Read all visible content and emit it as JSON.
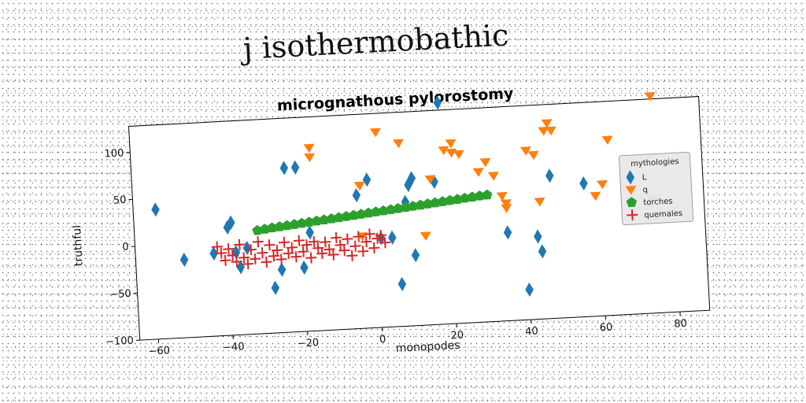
{
  "page_title": "j isothermobathic",
  "chart_data": {
    "type": "scatter",
    "title": "micrognathous pylorostomy",
    "xlabel": "monopodes",
    "ylabel": "truthful",
    "xlim": [
      -65,
      88
    ],
    "ylim": [
      -100,
      128
    ],
    "xticks": [
      -60,
      -40,
      -20,
      0,
      20,
      40,
      60,
      80
    ],
    "yticks": [
      -100,
      -50,
      0,
      50,
      100
    ],
    "grid": false,
    "legend": {
      "title": "mythologies",
      "placement": "right"
    },
    "series": [
      {
        "name": "L",
        "marker": "diamond",
        "color": "#1f77b4",
        "points": [
          [
            -59,
            38
          ],
          [
            -52,
            -17
          ],
          [
            -44,
            -12
          ],
          [
            -40,
            15
          ],
          [
            -39,
            20
          ],
          [
            -38,
            -12
          ],
          [
            -37,
            -28
          ],
          [
            -35,
            -8
          ],
          [
            -28,
            -52
          ],
          [
            -26,
            -33
          ],
          [
            -24,
            75
          ],
          [
            -21,
            75
          ],
          [
            -20,
            -32
          ],
          [
            -18,
            5
          ],
          [
            -5,
            42
          ],
          [
            -2,
            58
          ],
          [
            1,
            -5
          ],
          [
            4,
            -5
          ],
          [
            6,
            -55
          ],
          [
            8,
            32
          ],
          [
            9,
            50
          ],
          [
            10,
            57
          ],
          [
            10,
            -25
          ],
          [
            16,
            52
          ],
          [
            18,
            136
          ],
          [
            35,
            -6
          ],
          [
            40,
            -68
          ],
          [
            43,
            -12
          ],
          [
            44,
            -28
          ],
          [
            47,
            52
          ],
          [
            56,
            42
          ]
        ]
      },
      {
        "name": "q",
        "marker": "triangle-down",
        "color": "#ff7f0e",
        "points": [
          [
            -17,
            95
          ],
          [
            -17,
            85
          ],
          [
            -4,
            -2
          ],
          [
            -4,
            52
          ],
          [
            1,
            108
          ],
          [
            7,
            95
          ],
          [
            13,
            -5
          ],
          [
            15,
            55
          ],
          [
            19,
            85
          ],
          [
            21,
            92
          ],
          [
            21,
            82
          ],
          [
            23,
            80
          ],
          [
            28,
            60
          ],
          [
            30,
            70
          ],
          [
            32,
            55
          ],
          [
            34,
            33
          ],
          [
            35,
            25
          ],
          [
            35,
            20
          ],
          [
            41,
            80
          ],
          [
            43,
            75
          ],
          [
            44,
            25
          ],
          [
            46,
            100
          ],
          [
            47,
            108
          ],
          [
            48,
            100
          ],
          [
            59,
            28
          ],
          [
            61,
            40
          ],
          [
            63,
            87
          ],
          [
            74,
            22
          ],
          [
            75,
            131
          ]
        ]
      },
      {
        "name": "torches",
        "marker": "pentagon",
        "color": "#2ca02c",
        "points": [
          [
            -32,
            10
          ],
          [
            -30,
            11
          ],
          [
            -28,
            12
          ],
          [
            -26,
            12.8
          ],
          [
            -24,
            13.6
          ],
          [
            -22,
            14.4
          ],
          [
            -20,
            15.2
          ],
          [
            -18,
            16
          ],
          [
            -16,
            16.8
          ],
          [
            -14,
            17.6
          ],
          [
            -12,
            18.4
          ],
          [
            -10,
            19.2
          ],
          [
            -8,
            20
          ],
          [
            -6,
            20.8
          ],
          [
            -4,
            21.6
          ],
          [
            -2,
            22.4
          ],
          [
            0,
            23.2
          ],
          [
            2,
            24
          ],
          [
            4,
            24.8
          ],
          [
            6,
            25.6
          ],
          [
            8,
            26.4
          ],
          [
            10,
            27.2
          ],
          [
            12,
            28
          ],
          [
            14,
            28.8
          ],
          [
            16,
            29.6
          ],
          [
            18,
            30.4
          ],
          [
            20,
            31.2
          ],
          [
            22,
            32
          ],
          [
            24,
            32.8
          ],
          [
            26,
            33.6
          ],
          [
            28,
            34.4
          ],
          [
            30,
            35
          ]
        ]
      },
      {
        "name": "quemales",
        "marker": "plus",
        "color": "#d62728",
        "points": [
          [
            -43,
            -5
          ],
          [
            -42,
            -12
          ],
          [
            -41,
            -20
          ],
          [
            -40,
            -8
          ],
          [
            -39,
            -15
          ],
          [
            -38,
            -22
          ],
          [
            -37,
            -4
          ],
          [
            -36,
            -18
          ],
          [
            -35,
            -25
          ],
          [
            -34,
            -10
          ],
          [
            -33,
            -20
          ],
          [
            -32,
            -2
          ],
          [
            -31,
            -14
          ],
          [
            -30,
            -24
          ],
          [
            -29,
            -6
          ],
          [
            -28,
            -18
          ],
          [
            -27,
            -12
          ],
          [
            -26,
            -22
          ],
          [
            -25,
            -4
          ],
          [
            -24,
            -16
          ],
          [
            -23,
            -10
          ],
          [
            -22,
            -20
          ],
          [
            -21,
            -3
          ],
          [
            -20,
            -15
          ],
          [
            -19,
            -8
          ],
          [
            -18,
            -22
          ],
          [
            -17,
            -5
          ],
          [
            -16,
            -12
          ],
          [
            -15,
            -18
          ],
          [
            -14,
            -6
          ],
          [
            -13,
            -14
          ],
          [
            -12,
            -20
          ],
          [
            -11,
            -2
          ],
          [
            -10,
            -10
          ],
          [
            -9,
            -16
          ],
          [
            -8,
            -4
          ],
          [
            -7,
            -22
          ],
          [
            -6,
            -12
          ],
          [
            -5,
            -2
          ],
          [
            -4,
            -18
          ],
          [
            -3,
            -8
          ],
          [
            -2,
            0
          ],
          [
            -1,
            -15
          ],
          [
            0,
            -5
          ],
          [
            1,
            -2
          ],
          [
            2,
            -10
          ]
        ]
      }
    ]
  }
}
